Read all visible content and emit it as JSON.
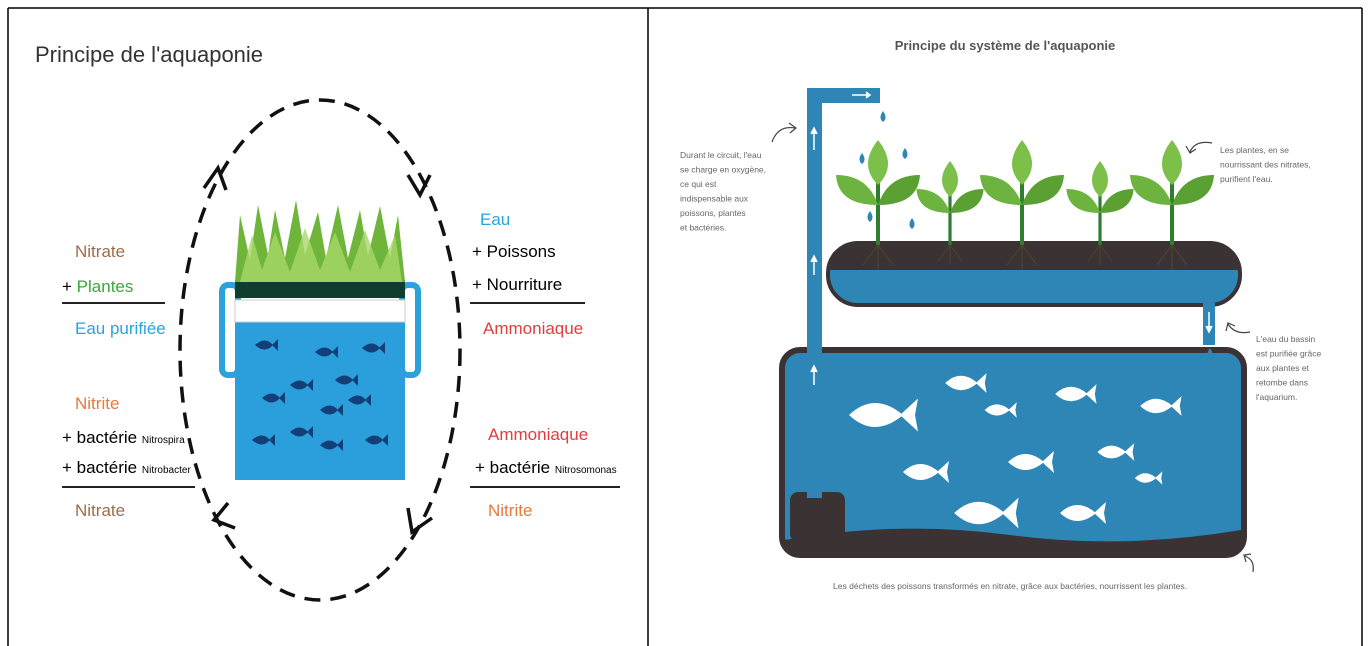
{
  "left": {
    "title": "Principe de l'aquaponie",
    "top_left": {
      "line1": "Nitrate",
      "line2": {
        "sign": "+",
        "word": "Plantes"
      },
      "result": "Eau purifiée"
    },
    "bottom_left": {
      "line1": "Nitrite",
      "line2": {
        "prefix": "+ bactérie",
        "name": "Nitrospira"
      },
      "line3": {
        "prefix": "+ bactérie",
        "name": "Nitrobacter"
      },
      "result": "Nitrate"
    },
    "top_right": {
      "line1": "Eau",
      "line2": "+ Poissons",
      "line3": "+ Nourriture",
      "result": "Ammoniaque"
    },
    "bottom_right": {
      "line1": "Ammoniaque",
      "line2": {
        "prefix": "+ bactérie",
        "name": "Nitrosomonas"
      },
      "result": "Nitrite"
    }
  },
  "right": {
    "title": "Principe du système de l'aquaponie",
    "notes": [
      {
        "lines": [
          "Durant le circuit, l'eau",
          "se charge en oxygène,",
          "ce qui est",
          "indispensable aux",
          "poissons, plantes",
          "et bactéries."
        ]
      },
      {
        "lines": [
          "Les plantes, en se",
          "nourrissant des nitrates,",
          "purifient l'eau."
        ]
      },
      {
        "lines": [
          "L'eau du bassin",
          "est purifiée grâce",
          "aux plantes et",
          "retombe dans",
          "l'aquarium."
        ]
      },
      {
        "lines": [
          "Les déchets des poissons transformés en nitrate, grâce aux bactéries, nourrissent les plantes."
        ]
      }
    ]
  }
}
